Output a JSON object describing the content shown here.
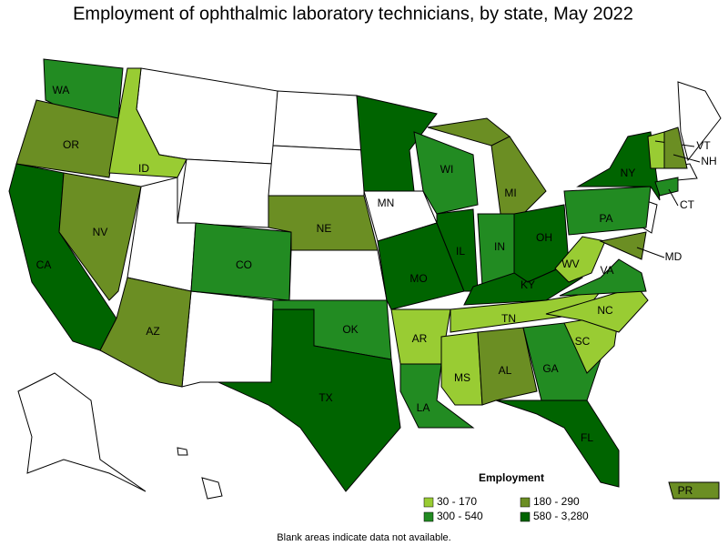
{
  "title": "Employment of ophthalmic laboratory technicians, by state, May 2022",
  "legend": {
    "title": "Employment",
    "items": [
      {
        "label": "30 - 170",
        "color": "#99cc33"
      },
      {
        "label": "180 - 290",
        "color": "#6b8e23"
      },
      {
        "label": "300 - 540",
        "color": "#228b22"
      },
      {
        "label": "580 - 3,280",
        "color": "#006400"
      }
    ]
  },
  "states": [
    {
      "label": "WA",
      "color": "#228b22"
    },
    {
      "label": "OR",
      "color": "#6b8e23"
    },
    {
      "label": "CA",
      "color": "#006400"
    },
    {
      "label": "NV",
      "color": "#6b8e23"
    },
    {
      "label": "ID",
      "color": "#99cc33"
    },
    {
      "label": "AZ",
      "color": "#6b8e23"
    },
    {
      "label": "CO",
      "color": "#228b22"
    },
    {
      "label": "NE",
      "color": "#6b8e23"
    },
    {
      "label": "OK",
      "color": "#228b22"
    },
    {
      "label": "TX",
      "color": "#006400"
    },
    {
      "label": "MN",
      "color": "#006400"
    },
    {
      "label": "MO",
      "color": "#006400"
    },
    {
      "label": "AR",
      "color": "#99cc33"
    },
    {
      "label": "LA",
      "color": "#228b22"
    },
    {
      "label": "WI",
      "color": "#228b22"
    },
    {
      "label": "IL",
      "color": "#006400"
    },
    {
      "label": "MI",
      "color": "#6b8e23"
    },
    {
      "label": "IN",
      "color": "#228b22"
    },
    {
      "label": "OH",
      "color": "#006400"
    },
    {
      "label": "KY",
      "color": "#006400"
    },
    {
      "label": "TN",
      "color": "#99cc33"
    },
    {
      "label": "MS",
      "color": "#99cc33"
    },
    {
      "label": "AL",
      "color": "#6b8e23"
    },
    {
      "label": "GA",
      "color": "#228b22"
    },
    {
      "label": "FL",
      "color": "#006400"
    },
    {
      "label": "SC",
      "color": "#99cc33"
    },
    {
      "label": "NC",
      "color": "#99cc33"
    },
    {
      "label": "VA",
      "color": "#228b22"
    },
    {
      "label": "WV",
      "color": "#99cc33"
    },
    {
      "label": "PA",
      "color": "#228b22"
    },
    {
      "label": "NY",
      "color": "#006400"
    },
    {
      "label": "MD",
      "color": "#6b8e23"
    },
    {
      "label": "CT",
      "color": "#228b22"
    },
    {
      "label": "VT",
      "color": "#99cc33"
    },
    {
      "label": "NH",
      "color": "#6b8e23"
    },
    {
      "label": "PR",
      "color": "#6b8e23"
    }
  ],
  "footnote": "Blank areas indicate data not available."
}
